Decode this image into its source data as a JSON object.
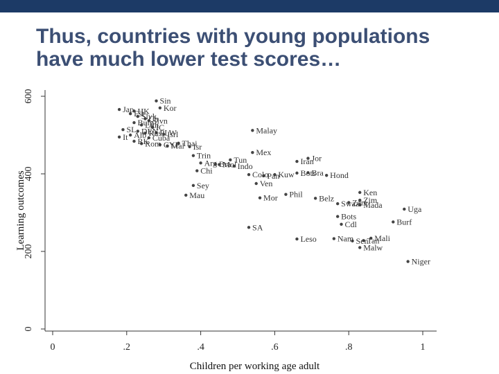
{
  "slide": {
    "title_line1": "Thus, countries with young populations",
    "title_line2": "have much lower test scores…"
  },
  "chart_data": {
    "type": "scatter",
    "title": "",
    "xlabel": "Children per working age adult",
    "ylabel": "Learning outcomes",
    "xlim": [
      0,
      1
    ],
    "ylim": [
      0,
      600
    ],
    "xticks": [
      {
        "value": 0,
        "label": "0"
      },
      {
        "value": 0.2,
        "label": ".2"
      },
      {
        "value": 0.4,
        "label": ".4"
      },
      {
        "value": 0.6,
        "label": ".6"
      },
      {
        "value": 0.8,
        "label": ".8"
      },
      {
        "value": 1,
        "label": "1"
      }
    ],
    "yticks": [
      {
        "value": 0,
        "label": "0"
      },
      {
        "value": 200,
        "label": "200"
      },
      {
        "value": 400,
        "label": "400"
      },
      {
        "value": 600,
        "label": "600"
      }
    ],
    "grid": false,
    "legend": "none",
    "marker_color": "#444444",
    "points": [
      {
        "x": 0.28,
        "y": 588,
        "label": "Sin"
      },
      {
        "x": 0.29,
        "y": 570,
        "label": "Kor"
      },
      {
        "x": 0.18,
        "y": 566,
        "label": "Jap"
      },
      {
        "x": 0.22,
        "y": 562,
        "label": "HK"
      },
      {
        "x": 0.21,
        "y": 555,
        "label": "Est"
      },
      {
        "x": 0.23,
        "y": 548,
        "label": "Slvk"
      },
      {
        "x": 0.25,
        "y": 542,
        "label": "Ch"
      },
      {
        "x": 0.26,
        "y": 537,
        "label": "Slvn"
      },
      {
        "x": 0.22,
        "y": 532,
        "label": "Bulg"
      },
      {
        "x": 0.24,
        "y": 526,
        "label": "Lith"
      },
      {
        "x": 0.27,
        "y": 520,
        "label": "IC"
      },
      {
        "x": 0.19,
        "y": 514,
        "label": "SL"
      },
      {
        "x": 0.23,
        "y": 510,
        "label": "DEN"
      },
      {
        "x": 0.25,
        "y": 505,
        "label": "Rus"
      },
      {
        "x": 0.28,
        "y": 506,
        "label": "PLW"
      },
      {
        "x": 0.3,
        "y": 502,
        "label": "Isrl"
      },
      {
        "x": 0.18,
        "y": 495,
        "label": "It"
      },
      {
        "x": 0.21,
        "y": 500,
        "label": "Alb"
      },
      {
        "x": 0.26,
        "y": 493,
        "label": "Cuba"
      },
      {
        "x": 0.22,
        "y": 484,
        "label": "RK"
      },
      {
        "x": 0.24,
        "y": 478,
        "label": "Rom"
      },
      {
        "x": 0.29,
        "y": 475,
        "label": "CYP"
      },
      {
        "x": 0.31,
        "y": 472,
        "label": "Mal"
      },
      {
        "x": 0.34,
        "y": 479,
        "label": "Thai"
      },
      {
        "x": 0.37,
        "y": 470,
        "label": "Isr"
      },
      {
        "x": 0.54,
        "y": 512,
        "label": "Malay"
      },
      {
        "x": 0.54,
        "y": 455,
        "label": "Mex"
      },
      {
        "x": 0.38,
        "y": 447,
        "label": "Trin"
      },
      {
        "x": 0.48,
        "y": 436,
        "label": "Tun"
      },
      {
        "x": 0.4,
        "y": 428,
        "label": "Arg"
      },
      {
        "x": 0.44,
        "y": 425,
        "label": "Bra"
      },
      {
        "x": 0.45,
        "y": 424,
        "label": "Mol"
      },
      {
        "x": 0.49,
        "y": 420,
        "label": "Indo"
      },
      {
        "x": 0.39,
        "y": 408,
        "label": "Chi"
      },
      {
        "x": 0.53,
        "y": 398,
        "label": "Colo"
      },
      {
        "x": 0.57,
        "y": 395,
        "label": "Pan"
      },
      {
        "x": 0.6,
        "y": 398,
        "label": "Kuw"
      },
      {
        "x": 0.66,
        "y": 432,
        "label": "Iran"
      },
      {
        "x": 0.69,
        "y": 440,
        "label": "Jor"
      },
      {
        "x": 0.66,
        "y": 402,
        "label": "Bots"
      },
      {
        "x": 0.69,
        "y": 403,
        "label": "Bra"
      },
      {
        "x": 0.74,
        "y": 396,
        "label": "Hond"
      },
      {
        "x": 0.55,
        "y": 375,
        "label": "Ven"
      },
      {
        "x": 0.38,
        "y": 370,
        "label": "Sey"
      },
      {
        "x": 0.36,
        "y": 345,
        "label": "Mau"
      },
      {
        "x": 0.56,
        "y": 338,
        "label": "Mor"
      },
      {
        "x": 0.63,
        "y": 347,
        "label": "Phil"
      },
      {
        "x": 0.71,
        "y": 337,
        "label": "Belz"
      },
      {
        "x": 0.83,
        "y": 352,
        "label": "Ken"
      },
      {
        "x": 0.83,
        "y": 332,
        "label": "Zim"
      },
      {
        "x": 0.77,
        "y": 323,
        "label": "Swazi"
      },
      {
        "x": 0.8,
        "y": 326,
        "label": "Zam"
      },
      {
        "x": 0.83,
        "y": 320,
        "label": "Mada"
      },
      {
        "x": 0.95,
        "y": 309,
        "label": "Uga"
      },
      {
        "x": 0.77,
        "y": 290,
        "label": "Bots"
      },
      {
        "x": 0.78,
        "y": 270,
        "label": "Cdl"
      },
      {
        "x": 0.92,
        "y": 276,
        "label": "Burf"
      },
      {
        "x": 0.53,
        "y": 262,
        "label": "SA"
      },
      {
        "x": 0.66,
        "y": 232,
        "label": "Leso"
      },
      {
        "x": 0.76,
        "y": 233,
        "label": "Nam"
      },
      {
        "x": 0.81,
        "y": 227,
        "label": "Sen"
      },
      {
        "x": 0.84,
        "y": 228,
        "label": "Tan"
      },
      {
        "x": 0.86,
        "y": 234,
        "label": "Mali"
      },
      {
        "x": 0.83,
        "y": 210,
        "label": "Malw"
      },
      {
        "x": 0.96,
        "y": 174,
        "label": "Niger"
      }
    ]
  }
}
